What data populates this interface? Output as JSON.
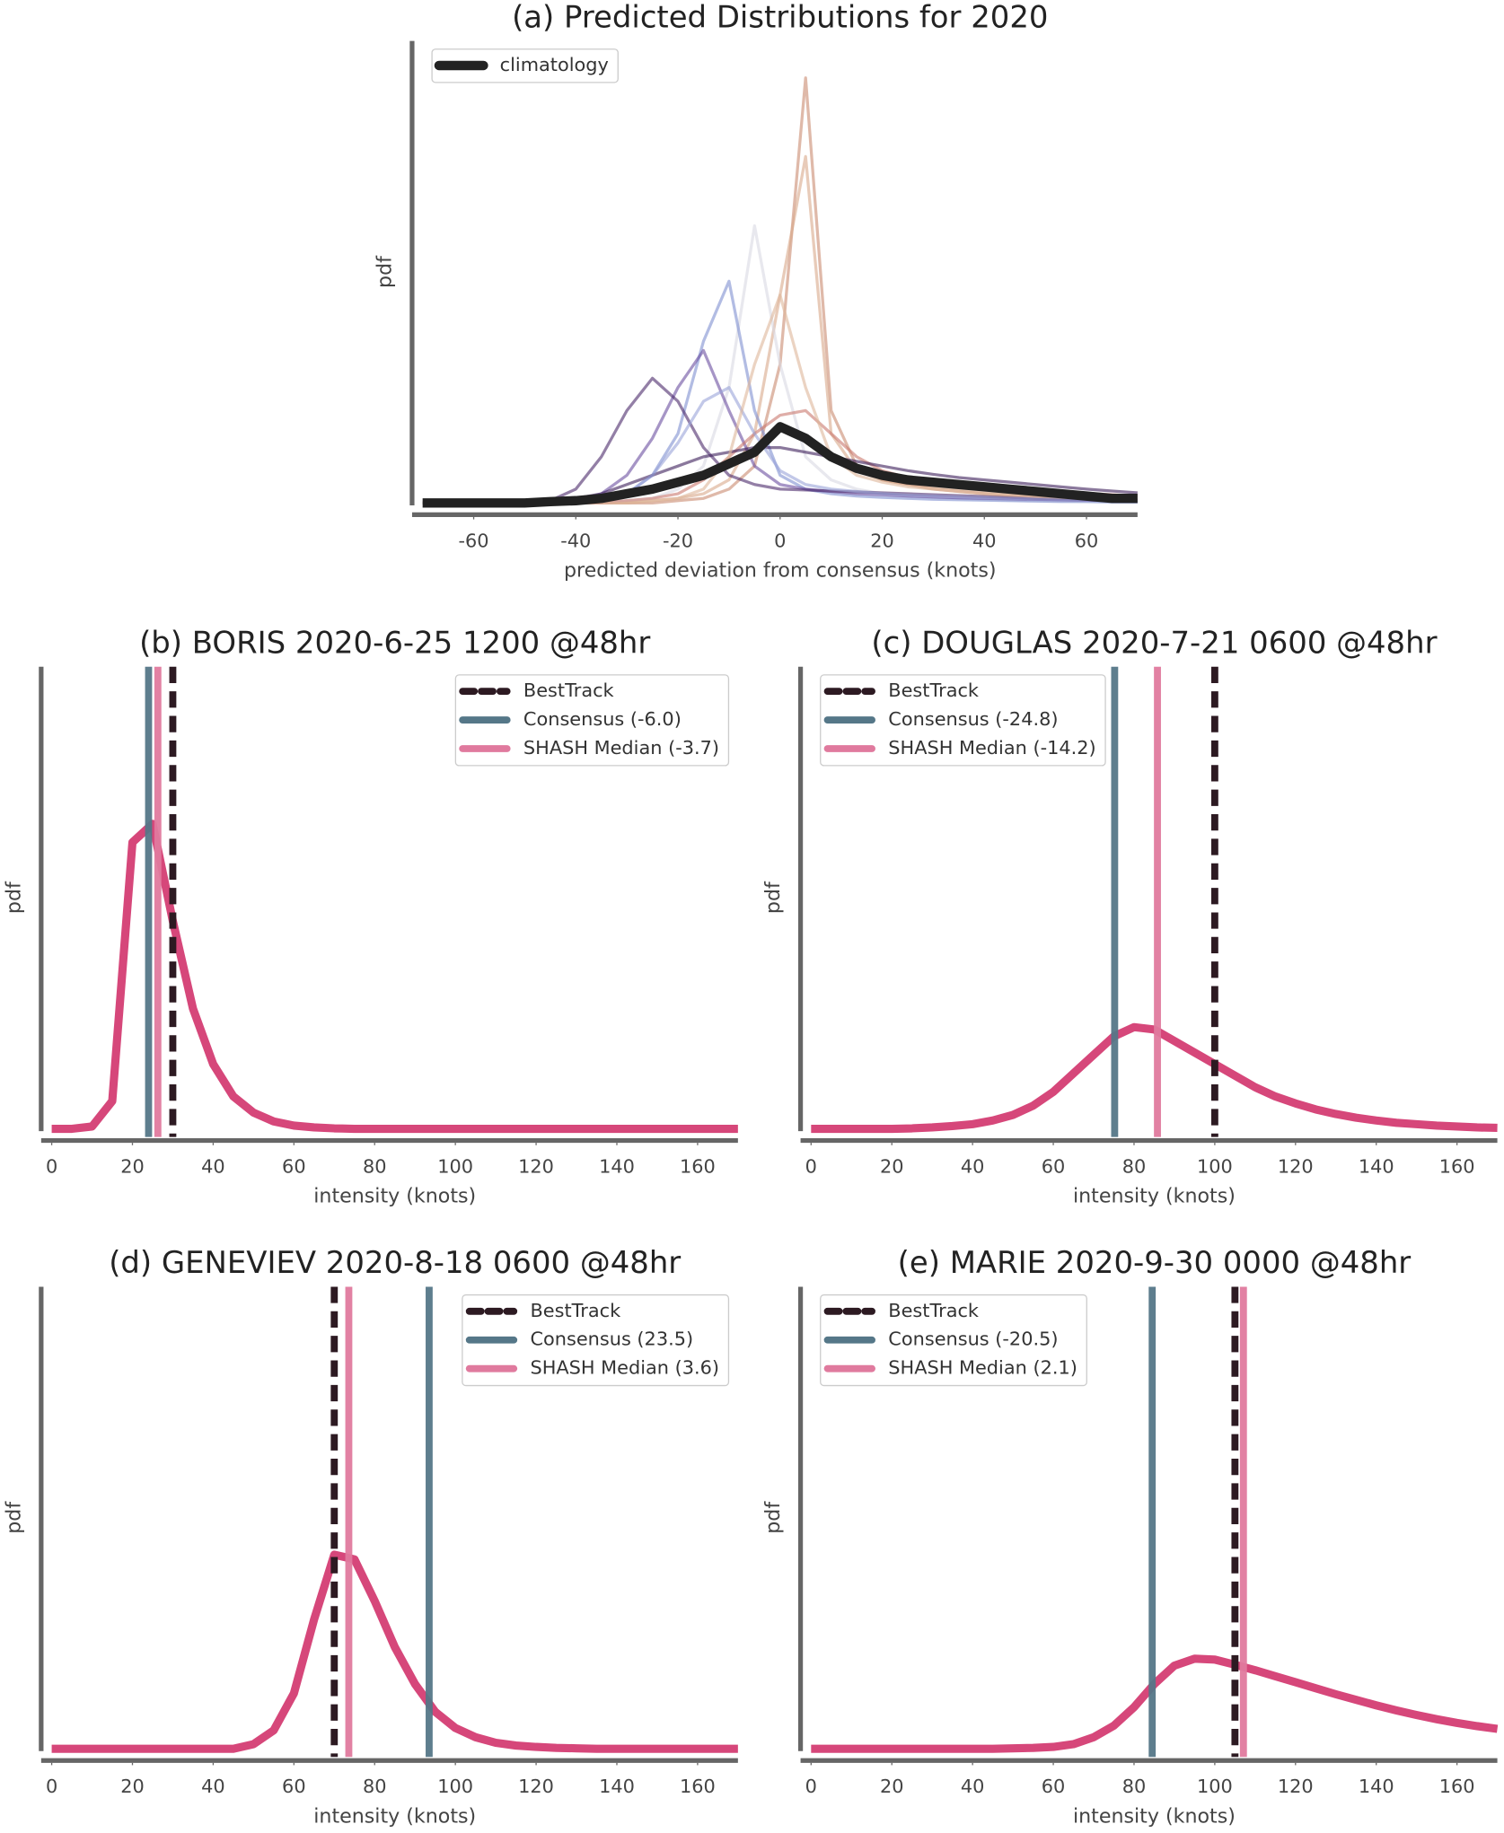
{
  "chart_data": [
    {
      "type": "line",
      "title": "(a) Predicted Distributions for 2020",
      "xlabel": "predicted deviation from consensus (knots)",
      "ylabel": "pdf",
      "x": [
        -70,
        -65,
        -60,
        -55,
        -50,
        -45,
        -40,
        -35,
        -30,
        -25,
        -20,
        -15,
        -10,
        -5,
        0,
        5,
        10,
        15,
        20,
        25,
        30,
        35,
        40,
        45,
        50,
        55,
        60,
        65,
        70
      ],
      "xlim": [
        -70,
        70
      ],
      "xticks": [
        -60,
        -40,
        -20,
        0,
        20,
        40,
        60
      ],
      "ylim": [
        0,
        1
      ],
      "legend": "upper left",
      "series": [
        {
          "color": "#c98a70",
          "values": [
            0,
            0,
            0,
            0,
            0,
            0,
            0,
            0,
            0,
            0,
            0.005,
            0.01,
            0.03,
            0.08,
            0.3,
            0.92,
            0.2,
            0.08,
            0.05,
            0.04,
            0.03,
            0.025,
            0.02,
            0.015,
            0.012,
            0.01,
            0.008,
            0.006,
            0.005
          ]
        },
        {
          "color": "#d9a98a",
          "values": [
            0,
            0,
            0,
            0,
            0,
            0,
            0,
            0,
            0,
            0.005,
            0.01,
            0.02,
            0.05,
            0.15,
            0.45,
            0.75,
            0.15,
            0.07,
            0.05,
            0.04,
            0.035,
            0.03,
            0.025,
            0.02,
            0.017,
            0.014,
            0.012,
            0.01,
            0.008
          ]
        },
        {
          "color": "#d8d8e2",
          "values": [
            0,
            0,
            0,
            0,
            0,
            0,
            0,
            0,
            0.005,
            0.01,
            0.03,
            0.08,
            0.25,
            0.6,
            0.3,
            0.1,
            0.05,
            0.03,
            0.02,
            0.015,
            0.012,
            0.01,
            0.008,
            0.006,
            0.005,
            0.004,
            0.003,
            0.003,
            0.002
          ]
        },
        {
          "color": "#7f8fd0",
          "values": [
            0,
            0,
            0,
            0,
            0,
            0,
            0,
            0.005,
            0.02,
            0.06,
            0.15,
            0.35,
            0.48,
            0.2,
            0.06,
            0.03,
            0.02,
            0.015,
            0.012,
            0.01,
            0.008,
            0.007,
            0.006,
            0.005,
            0.004,
            0.003,
            0.003,
            0.002,
            0.002
          ]
        },
        {
          "color": "#6a4ea0",
          "values": [
            0,
            0,
            0,
            0,
            0,
            0,
            0.005,
            0.02,
            0.06,
            0.14,
            0.25,
            0.33,
            0.2,
            0.08,
            0.04,
            0.03,
            0.025,
            0.02,
            0.018,
            0.015,
            0.013,
            0.011,
            0.01,
            0.009,
            0.008,
            0.007,
            0.006,
            0.005,
            0.004
          ]
        },
        {
          "color": "#4b2a6b",
          "values": [
            0,
            0,
            0,
            0,
            0,
            0.005,
            0.03,
            0.1,
            0.2,
            0.27,
            0.22,
            0.12,
            0.06,
            0.04,
            0.03,
            0.028,
            0.026,
            0.024,
            0.022,
            0.02,
            0.018,
            0.016,
            0.014,
            0.012,
            0.01,
            0.009,
            0.008,
            0.007,
            0.006
          ]
        },
        {
          "color": "#c9786e",
          "values": [
            0,
            0,
            0,
            0,
            0,
            0,
            0,
            0,
            0.005,
            0.01,
            0.02,
            0.05,
            0.1,
            0.15,
            0.19,
            0.2,
            0.15,
            0.1,
            0.07,
            0.055,
            0.045,
            0.04,
            0.035,
            0.03,
            0.027,
            0.024,
            0.021,
            0.018,
            0.015
          ]
        },
        {
          "color": "#3c1e5a",
          "values": [
            0,
            0,
            0,
            0,
            0,
            0.003,
            0.01,
            0.02,
            0.04,
            0.06,
            0.08,
            0.1,
            0.11,
            0.12,
            0.12,
            0.11,
            0.1,
            0.09,
            0.08,
            0.07,
            0.062,
            0.055,
            0.05,
            0.045,
            0.04,
            0.035,
            0.03,
            0.026,
            0.022
          ]
        },
        {
          "color": "#9aa4d8",
          "values": [
            0,
            0,
            0,
            0,
            0,
            0,
            0,
            0.005,
            0.02,
            0.06,
            0.13,
            0.22,
            0.25,
            0.15,
            0.07,
            0.04,
            0.03,
            0.025,
            0.02,
            0.017,
            0.015,
            0.013,
            0.011,
            0.01,
            0.009,
            0.008,
            0.007,
            0.006,
            0.005
          ]
        },
        {
          "color": "#deb59a",
          "values": [
            0,
            0,
            0,
            0,
            0,
            0,
            0,
            0,
            0,
            0.005,
            0.01,
            0.03,
            0.1,
            0.3,
            0.45,
            0.25,
            0.1,
            0.06,
            0.045,
            0.035,
            0.03,
            0.025,
            0.02,
            0.017,
            0.014,
            0.012,
            0.01,
            0.008,
            0.007
          ]
        },
        {
          "name": "climatology",
          "color": "#222222",
          "values": [
            0,
            0,
            0,
            0,
            0,
            0.003,
            0.005,
            0.01,
            0.02,
            0.03,
            0.045,
            0.06,
            0.085,
            0.11,
            0.165,
            0.14,
            0.1,
            0.075,
            0.06,
            0.05,
            0.045,
            0.04,
            0.035,
            0.03,
            0.025,
            0.02,
            0.015,
            0.01,
            0.01
          ]
        }
      ]
    },
    {
      "type": "line",
      "title": "(b) BORIS 2020-6-25 1200 @48hr",
      "xlabel": "intensity (knots)",
      "ylabel": "pdf",
      "x": [
        0,
        5,
        10,
        15,
        20,
        25,
        30,
        35,
        40,
        45,
        50,
        55,
        60,
        65,
        70,
        75,
        80,
        85,
        90,
        95,
        100,
        105,
        110,
        115,
        120,
        125,
        130,
        135,
        140,
        145,
        150,
        155,
        160,
        165,
        170
      ],
      "xlim": [
        0,
        170
      ],
      "xticks": [
        0,
        20,
        40,
        60,
        80,
        100,
        120,
        140,
        160
      ],
      "ylim": [
        0,
        0.1
      ],
      "legend": "upper right",
      "series": [
        {
          "color": "#d6477a",
          "values": [
            0,
            0,
            0.0005,
            0.006,
            0.062,
            0.066,
            0.045,
            0.026,
            0.014,
            0.007,
            0.0035,
            0.0016,
            0.0007,
            0.0003,
            0.0001,
            0,
            0,
            0,
            0,
            0,
            0,
            0,
            0,
            0,
            0,
            0,
            0,
            0,
            0,
            0,
            0,
            0,
            0,
            0,
            0
          ]
        }
      ],
      "reference_lines": [
        {
          "name": "BestTrack",
          "color": "#2d1a22",
          "value": 30,
          "dashed": true
        },
        {
          "name": "Consensus (-6.0)",
          "color": "#557788",
          "value": 24,
          "dashed": false
        },
        {
          "name": "SHASH Median (-3.7)",
          "color": "#e07a9e",
          "value": 26.3,
          "dashed": false
        }
      ]
    },
    {
      "type": "line",
      "title": "(c) DOUGLAS 2020-7-21 0600 @48hr",
      "xlabel": "intensity (knots)",
      "ylabel": "pdf",
      "x": [
        0,
        5,
        10,
        15,
        20,
        25,
        30,
        35,
        40,
        45,
        50,
        55,
        60,
        65,
        70,
        75,
        80,
        85,
        90,
        95,
        100,
        105,
        110,
        115,
        120,
        125,
        130,
        135,
        140,
        145,
        150,
        155,
        160,
        165,
        170
      ],
      "xlim": [
        0,
        170
      ],
      "xticks": [
        0,
        20,
        40,
        60,
        80,
        100,
        120,
        140,
        160
      ],
      "ylim": [
        0,
        0.1
      ],
      "legend": "upper left",
      "series": [
        {
          "color": "#d6477a",
          "values": [
            0,
            0,
            0,
            0,
            0,
            0.0001,
            0.0003,
            0.0006,
            0.001,
            0.0018,
            0.003,
            0.005,
            0.008,
            0.012,
            0.016,
            0.02,
            0.022,
            0.0215,
            0.019,
            0.0165,
            0.014,
            0.0115,
            0.009,
            0.007,
            0.0055,
            0.0042,
            0.0032,
            0.0024,
            0.0018,
            0.0013,
            0.001,
            0.0007,
            0.0005,
            0.0003,
            0.0002
          ]
        }
      ],
      "reference_lines": [
        {
          "name": "BestTrack",
          "color": "#2d1a22",
          "value": 100,
          "dashed": true
        },
        {
          "name": "Consensus (-24.8)",
          "color": "#557788",
          "value": 75.2,
          "dashed": false
        },
        {
          "name": "SHASH Median (-14.2)",
          "color": "#e07a9e",
          "value": 85.8,
          "dashed": false
        }
      ]
    },
    {
      "type": "line",
      "title": "(d) GENEVIEV 2020-8-18 0600 @48hr",
      "xlabel": "intensity (knots)",
      "ylabel": "pdf",
      "x": [
        0,
        5,
        10,
        15,
        20,
        25,
        30,
        35,
        40,
        45,
        50,
        55,
        60,
        65,
        70,
        75,
        80,
        85,
        90,
        95,
        100,
        105,
        110,
        115,
        120,
        125,
        130,
        135,
        140,
        145,
        150,
        155,
        160,
        165,
        170
      ],
      "xlim": [
        0,
        170
      ],
      "xticks": [
        0,
        20,
        40,
        60,
        80,
        100,
        120,
        140,
        160
      ],
      "ylim": [
        0,
        0.1
      ],
      "legend": "upper right",
      "series": [
        {
          "color": "#d6477a",
          "values": [
            0,
            0,
            0,
            0,
            0,
            0,
            0,
            0,
            0,
            0,
            0.001,
            0.004,
            0.012,
            0.028,
            0.042,
            0.041,
            0.032,
            0.022,
            0.014,
            0.008,
            0.0045,
            0.0025,
            0.0013,
            0.0007,
            0.0004,
            0.0002,
            0.0001,
            0,
            0,
            0,
            0,
            0,
            0,
            0,
            0
          ]
        }
      ],
      "reference_lines": [
        {
          "name": "BestTrack",
          "color": "#2d1a22",
          "value": 70,
          "dashed": true
        },
        {
          "name": "Consensus (23.5)",
          "color": "#557788",
          "value": 93.5,
          "dashed": false
        },
        {
          "name": "SHASH Median (3.6)",
          "color": "#e07a9e",
          "value": 73.6,
          "dashed": false
        }
      ]
    },
    {
      "type": "line",
      "title": "(e) MARIE 2020-9-30 0000 @48hr",
      "xlabel": "intensity (knots)",
      "ylabel": "pdf",
      "x": [
        0,
        5,
        10,
        15,
        20,
        25,
        30,
        35,
        40,
        45,
        50,
        55,
        60,
        65,
        70,
        75,
        80,
        85,
        90,
        95,
        100,
        105,
        110,
        115,
        120,
        125,
        130,
        135,
        140,
        145,
        150,
        155,
        160,
        165,
        170
      ],
      "xlim": [
        0,
        170
      ],
      "xticks": [
        0,
        20,
        40,
        60,
        80,
        100,
        120,
        140,
        160
      ],
      "ylim": [
        0,
        0.1
      ],
      "legend": "upper left",
      "series": [
        {
          "color": "#d6477a",
          "values": [
            0,
            0,
            0,
            0,
            0,
            0,
            0,
            0,
            0,
            0,
            0.0001,
            0.0002,
            0.0004,
            0.001,
            0.0025,
            0.005,
            0.009,
            0.014,
            0.018,
            0.0195,
            0.0193,
            0.0182,
            0.017,
            0.0157,
            0.0144,
            0.0131,
            0.0118,
            0.0106,
            0.0094,
            0.0083,
            0.0073,
            0.0064,
            0.0056,
            0.0049,
            0.0043
          ]
        }
      ],
      "reference_lines": [
        {
          "name": "BestTrack",
          "color": "#2d1a22",
          "value": 105,
          "dashed": true
        },
        {
          "name": "Consensus (-20.5)",
          "color": "#557788",
          "value": 84.5,
          "dashed": false
        },
        {
          "name": "SHASH Median (2.1)",
          "color": "#e07a9e",
          "value": 107.1,
          "dashed": false
        }
      ]
    }
  ]
}
